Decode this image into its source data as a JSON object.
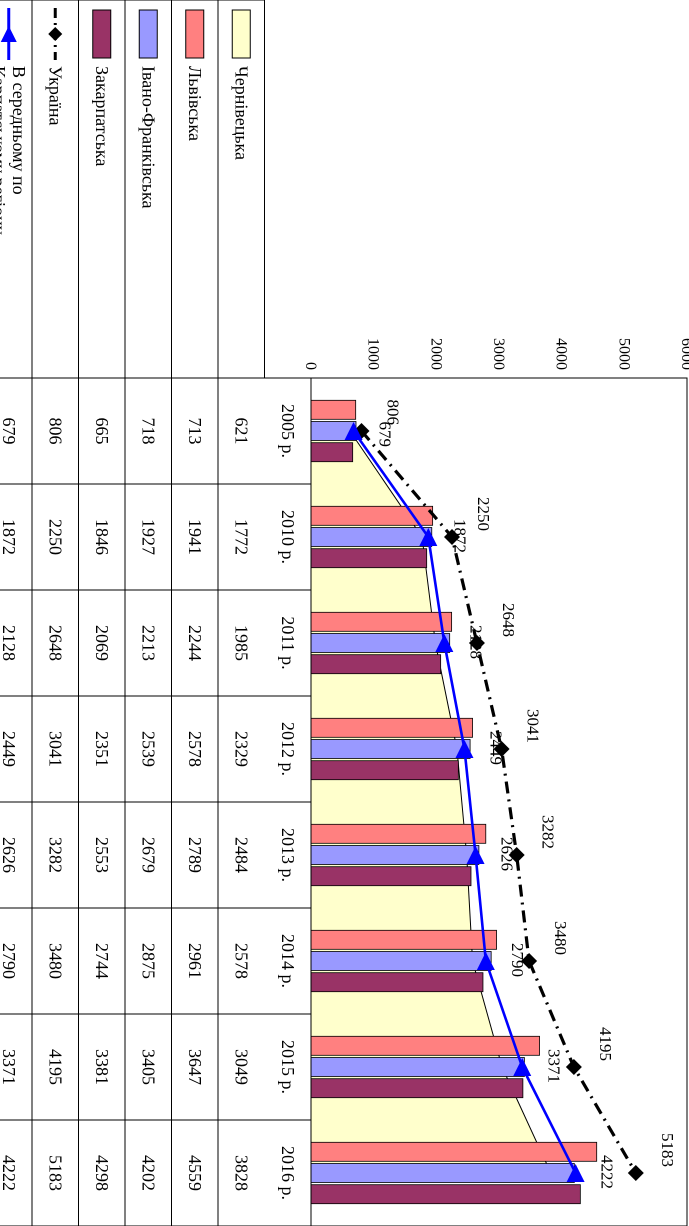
{
  "chart_data": {
    "type": "bar",
    "orientation": "rotated-90-clockwise",
    "categories": [
      "2005 р.",
      "2010 р.",
      "2011 р.",
      "2012 р.",
      "2013 р.",
      "2014 р.",
      "2015 р.",
      "2016 р."
    ],
    "ylim": [
      0,
      6000
    ],
    "y_ticks": [
      "0",
      "1000",
      "2000",
      "3000",
      "4000",
      "5000",
      "6000"
    ],
    "area_series": {
      "name": "Чернівецька",
      "color": "#ffffcc",
      "values": [
        621,
        1772,
        1985,
        2329,
        2484,
        2578,
        3049,
        3828
      ]
    },
    "bar_series": [
      {
        "name": "Львівська",
        "color": "#ff8080",
        "values": [
          713,
          1941,
          2244,
          2578,
          2789,
          2961,
          3647,
          4559
        ]
      },
      {
        "name": "Івано-Франківська",
        "color": "#9999ff",
        "values": [
          718,
          1927,
          2213,
          2539,
          2679,
          2875,
          3405,
          4202
        ]
      },
      {
        "name": "Закарпатська",
        "color": "#993366",
        "values": [
          665,
          1846,
          2069,
          2351,
          2553,
          2744,
          3381,
          4298
        ]
      }
    ],
    "line_series": [
      {
        "name": "Україна",
        "color": "#000000",
        "marker": "diamond",
        "values": [
          806,
          2250,
          2648,
          3041,
          3282,
          3480,
          4195,
          5183
        ],
        "labels": [
          "806",
          "2250",
          "2648",
          "3041",
          "3282",
          "3480",
          "4195",
          "5183"
        ]
      },
      {
        "name": "В середньому по Карпатському регіону",
        "color": "#0000ff",
        "marker": "triangle",
        "values": [
          679,
          1872,
          2128,
          2449,
          2626,
          2790,
          3371,
          4222
        ],
        "labels": [
          "679",
          "1872",
          "2128",
          "2449",
          "2626",
          "2790",
          "3371",
          "4222"
        ]
      }
    ],
    "table_rows": [
      {
        "name": "Чернівецька",
        "values": [
          "621",
          "1772",
          "1985",
          "2329",
          "2484",
          "2578",
          "3049",
          "3828"
        ]
      },
      {
        "name": "Львівська",
        "values": [
          "713",
          "1941",
          "2244",
          "2578",
          "2789",
          "2961",
          "3647",
          "4559"
        ]
      },
      {
        "name": "Івано-Франківська",
        "values": [
          "718",
          "1927",
          "2213",
          "2539",
          "2679",
          "2875",
          "3405",
          "4202"
        ]
      },
      {
        "name": "Закарпатська",
        "values": [
          "665",
          "1846",
          "2069",
          "2351",
          "2553",
          "2744",
          "3381",
          "4298"
        ]
      },
      {
        "name": "Україна",
        "values": [
          "806",
          "2250",
          "2648",
          "3041",
          "3282",
          "3480",
          "4195",
          "5183"
        ]
      },
      {
        "name": "В середньому по Карпатському регіону",
        "name_lines": [
          "В середньому по",
          "Карпатському регіону"
        ],
        "values": [
          "679",
          "1872",
          "2128",
          "2449",
          "2626",
          "2790",
          "3371",
          "4222"
        ]
      }
    ],
    "grid": false,
    "legend": "in-table-left"
  }
}
